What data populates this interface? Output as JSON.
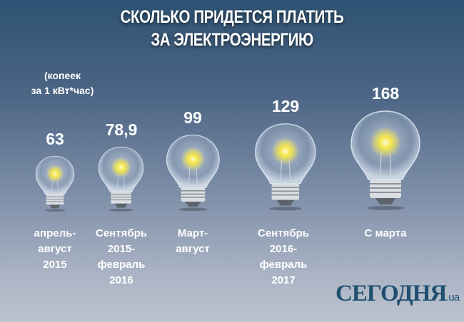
{
  "header": {
    "title_line1": "СКОЛЬКО ПРИДЕТСЯ ПЛАТИТЬ",
    "title_line2": "ЗА ЭЛЕКТРОЭНЕРГИЮ"
  },
  "chart_data": {
    "type": "bar",
    "title": "СКОЛЬКО ПРИДЕТСЯ ПЛАТИТЬ ЗА ЭЛЕКТРОЭНЕРГИЮ",
    "unit": "(копеек\nза 1 кВт*час)",
    "categories": [
      "апрель-\nавгуст\n2015",
      "Сентябрь\n2015-\nфевраль\n2016",
      "Март-\nавгуст",
      "Сентябрь\n2016-\nфевраль\n2017",
      "С марта"
    ],
    "values": [
      63,
      78.9,
      99,
      129,
      168
    ],
    "value_labels": [
      "63",
      "78,9",
      "99",
      "129",
      "168"
    ],
    "marks": "light-bulb (size proportional to value)"
  },
  "logo": {
    "name": "СЕГОДНЯ",
    "suffix": ".ua"
  },
  "colors": {
    "logo": "#1f4e70",
    "glow": "#f4e64a"
  }
}
